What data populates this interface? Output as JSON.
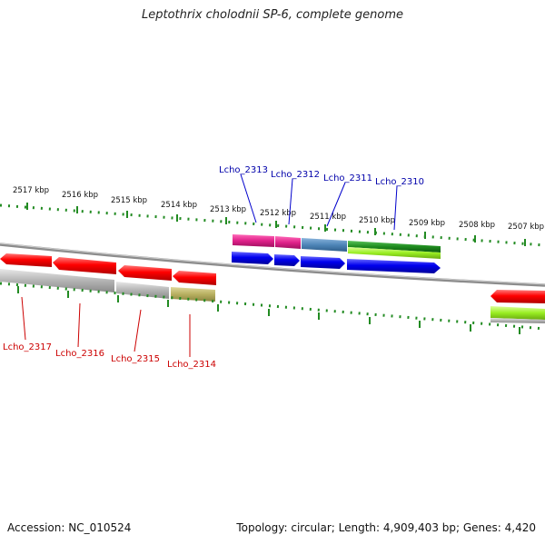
{
  "title": "Leptothrix cholodnii SP-6, complete genome",
  "footer": {
    "accession": "Accession: NC_010524",
    "topology": "Topology: circular; Length: 4,909,403 bp; Genes: 4,420"
  },
  "kbp_labels": [
    "2517 kbp",
    "2516 kbp",
    "2515 kbp",
    "2514 kbp",
    "2513 kbp",
    "2512 kbp",
    "2511 kbp",
    "2510 kbp",
    "2509 kbp",
    "2508 kbp",
    "2507 kbp"
  ],
  "genes_forward": [
    "Lcho_2313",
    "Lcho_2312",
    "Lcho_2311",
    "Lcho_2310"
  ],
  "genes_reverse": [
    "Lcho_2317",
    "Lcho_2316",
    "Lcho_2315",
    "Lcho_2314"
  ],
  "colors": {
    "tick": "#228b22",
    "backbone": "#7a7a7a",
    "cds_forward": "#0000ee",
    "cds_reverse": "#ee0000",
    "label_forward": "#0000aa",
    "label_reverse": "#cc0000",
    "magenta": "#e0218a",
    "steelblue": "#4f86b8",
    "green": "#1e8b1e",
    "lime": "#99ee22",
    "gray": "#b0b0b0",
    "olive": "#b8b060"
  }
}
